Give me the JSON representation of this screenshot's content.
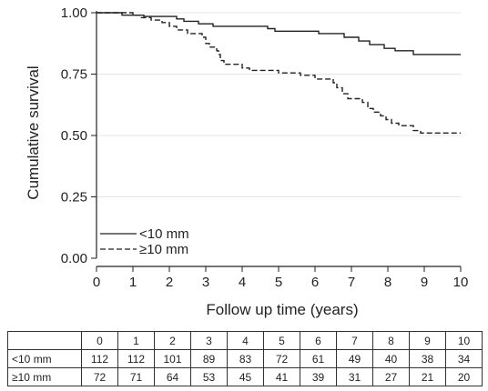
{
  "chart_data": {
    "type": "line",
    "xlabel": "Follow up time (years)",
    "ylabel": "Cumulative survival",
    "xlim": [
      0,
      10
    ],
    "ylim": [
      0,
      1
    ],
    "x_ticks": [
      "0",
      "1",
      "2",
      "3",
      "4",
      "5",
      "6",
      "7",
      "8",
      "9",
      "10"
    ],
    "y_ticks": [
      "0.00",
      "0.25",
      "0.50",
      "0.75",
      "1.00"
    ],
    "legend_position": "lower-left",
    "series": [
      {
        "name": "<10 mm",
        "style": "solid",
        "color": "#222222",
        "points": [
          [
            0,
            1.0
          ],
          [
            0.7,
            1.0
          ],
          [
            0.7,
            0.99
          ],
          [
            1.3,
            0.99
          ],
          [
            1.3,
            0.985
          ],
          [
            2.2,
            0.985
          ],
          [
            2.2,
            0.975
          ],
          [
            2.4,
            0.975
          ],
          [
            2.4,
            0.965
          ],
          [
            2.8,
            0.965
          ],
          [
            2.8,
            0.955
          ],
          [
            3.2,
            0.955
          ],
          [
            3.2,
            0.945
          ],
          [
            4.7,
            0.945
          ],
          [
            4.7,
            0.935
          ],
          [
            4.9,
            0.935
          ],
          [
            4.9,
            0.925
          ],
          [
            6.1,
            0.925
          ],
          [
            6.1,
            0.915
          ],
          [
            6.8,
            0.915
          ],
          [
            6.8,
            0.9
          ],
          [
            7.2,
            0.9
          ],
          [
            7.2,
            0.885
          ],
          [
            7.5,
            0.885
          ],
          [
            7.5,
            0.87
          ],
          [
            7.9,
            0.87
          ],
          [
            7.9,
            0.855
          ],
          [
            8.2,
            0.855
          ],
          [
            8.2,
            0.845
          ],
          [
            8.7,
            0.845
          ],
          [
            8.7,
            0.83
          ],
          [
            10.0,
            0.83
          ]
        ]
      },
      {
        "name": "≥10 mm",
        "style": "dashed",
        "color": "#222222",
        "points": [
          [
            0,
            1.0
          ],
          [
            1.0,
            1.0
          ],
          [
            1.0,
            0.99
          ],
          [
            1.2,
            0.99
          ],
          [
            1.2,
            0.98
          ],
          [
            1.5,
            0.98
          ],
          [
            1.5,
            0.97
          ],
          [
            1.8,
            0.97
          ],
          [
            1.8,
            0.96
          ],
          [
            2.0,
            0.96
          ],
          [
            2.0,
            0.945
          ],
          [
            2.2,
            0.945
          ],
          [
            2.2,
            0.93
          ],
          [
            2.5,
            0.93
          ],
          [
            2.5,
            0.915
          ],
          [
            2.9,
            0.915
          ],
          [
            2.9,
            0.9
          ],
          [
            3.0,
            0.9
          ],
          [
            3.0,
            0.875
          ],
          [
            3.1,
            0.875
          ],
          [
            3.1,
            0.86
          ],
          [
            3.3,
            0.86
          ],
          [
            3.3,
            0.845
          ],
          [
            3.35,
            0.845
          ],
          [
            3.35,
            0.83
          ],
          [
            3.4,
            0.83
          ],
          [
            3.4,
            0.805
          ],
          [
            3.5,
            0.805
          ],
          [
            3.5,
            0.79
          ],
          [
            4.0,
            0.79
          ],
          [
            4.0,
            0.775
          ],
          [
            4.2,
            0.775
          ],
          [
            4.2,
            0.765
          ],
          [
            5.0,
            0.765
          ],
          [
            5.0,
            0.755
          ],
          [
            5.6,
            0.755
          ],
          [
            5.6,
            0.745
          ],
          [
            6.0,
            0.745
          ],
          [
            6.0,
            0.73
          ],
          [
            6.5,
            0.73
          ],
          [
            6.5,
            0.715
          ],
          [
            6.6,
            0.715
          ],
          [
            6.6,
            0.695
          ],
          [
            6.75,
            0.695
          ],
          [
            6.75,
            0.67
          ],
          [
            6.9,
            0.67
          ],
          [
            6.9,
            0.65
          ],
          [
            7.3,
            0.65
          ],
          [
            7.3,
            0.635
          ],
          [
            7.45,
            0.635
          ],
          [
            7.45,
            0.61
          ],
          [
            7.6,
            0.61
          ],
          [
            7.6,
            0.595
          ],
          [
            7.8,
            0.595
          ],
          [
            7.8,
            0.58
          ],
          [
            7.95,
            0.58
          ],
          [
            7.95,
            0.565
          ],
          [
            8.1,
            0.565
          ],
          [
            8.1,
            0.55
          ],
          [
            8.3,
            0.55
          ],
          [
            8.3,
            0.54
          ],
          [
            8.7,
            0.54
          ],
          [
            8.7,
            0.52
          ],
          [
            8.9,
            0.52
          ],
          [
            8.9,
            0.51
          ],
          [
            10.0,
            0.51
          ]
        ]
      }
    ]
  },
  "risk_table": {
    "columns": [
      "0",
      "1",
      "2",
      "3",
      "4",
      "5",
      "6",
      "7",
      "8",
      "9",
      "10"
    ],
    "rows": [
      {
        "label": "<10 mm",
        "values": [
          "112",
          "112",
          "101",
          "89",
          "83",
          "72",
          "61",
          "49",
          "40",
          "38",
          "34"
        ]
      },
      {
        "label": "≥10 mm",
        "values": [
          "72",
          "71",
          "64",
          "53",
          "45",
          "41",
          "39",
          "31",
          "27",
          "21",
          "20"
        ]
      }
    ]
  }
}
